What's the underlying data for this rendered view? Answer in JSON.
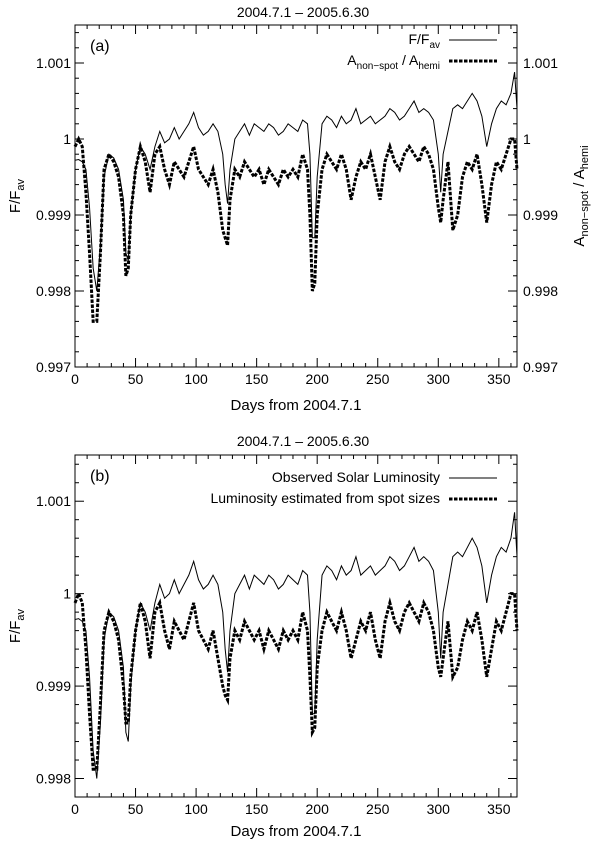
{
  "figure": {
    "panel_a": {
      "label": "(a)",
      "title": "2004.7.1 – 2005.6.30",
      "legend": {
        "solid_main": "F/F",
        "solid_sub": "av",
        "dashed_a": "A",
        "dashed_a_sub": "non−spot",
        "dashed_mid": " / A",
        "dashed_b_sub": "hemi"
      },
      "ylabel_left": {
        "main": "F/F",
        "sub": "av"
      },
      "ylabel_right": {
        "a": "A",
        "a_sub": "non−spot",
        "mid": " / A",
        "b_sub": "hemi"
      }
    },
    "panel_b": {
      "label": "(b)",
      "title": "2004.7.1 – 2005.6.30",
      "legend": {
        "solid": "Observed Solar Luminosity",
        "dashed": "Luminosity estimated from spot sizes"
      },
      "ylabel_left": {
        "main": "F/F",
        "sub": "av"
      }
    },
    "xlabel": "Days from 2004.7.1"
  },
  "chart_data": [
    {
      "type": "line",
      "panel": "a",
      "title": "2004.7.1 – 2005.6.30",
      "xlabel": "Days from 2004.7.1",
      "ylabel": "F/F_av",
      "ylabel_right": "A_non-spot / A_hemi",
      "xlim": [
        0,
        365
      ],
      "ylim": [
        0.997,
        1.0015
      ],
      "x_ticks": [
        "0",
        "50",
        "100",
        "150",
        "200",
        "250",
        "300",
        "350"
      ],
      "y_ticks": [
        "0.997",
        "0.998",
        "0.999",
        "1",
        "1.001"
      ],
      "y_tick_values": [
        0.997,
        0.998,
        0.999,
        1.0,
        1.001
      ],
      "series": [
        {
          "name": "F/F_av",
          "style": "solid",
          "x": [
            0,
            3,
            6,
            9,
            12,
            15,
            18,
            21,
            24,
            28,
            32,
            36,
            40,
            42,
            44,
            46,
            50,
            54,
            58,
            62,
            66,
            70,
            74,
            78,
            82,
            86,
            90,
            94,
            98,
            102,
            106,
            110,
            114,
            118,
            122,
            124,
            126,
            128,
            132,
            136,
            140,
            144,
            148,
            152,
            156,
            160,
            164,
            168,
            172,
            176,
            180,
            184,
            188,
            192,
            194,
            196,
            198,
            200,
            204,
            208,
            212,
            216,
            220,
            224,
            228,
            232,
            236,
            240,
            244,
            248,
            252,
            256,
            260,
            264,
            268,
            272,
            276,
            280,
            284,
            288,
            292,
            296,
            300,
            302,
            304,
            308,
            312,
            316,
            320,
            324,
            328,
            332,
            336,
            340,
            344,
            348,
            352,
            356,
            360,
            363,
            365
          ],
          "y": [
            0.99972,
            0.99973,
            0.9997,
            0.9996,
            0.9991,
            0.9983,
            0.998,
            0.9986,
            0.9995,
            0.9998,
            0.99975,
            0.9996,
            0.9992,
            0.9985,
            0.9984,
            0.999,
            0.9996,
            0.9999,
            0.9998,
            0.9996,
            0.9999,
            1.0001,
            0.99995,
            1.0,
            1.00015,
            1.0,
            1.0001,
            1.0002,
            1.00035,
            1.00015,
            1.00005,
            1.0001,
            1.0002,
            1.0001,
            0.9998,
            0.9994,
            0.99915,
            0.9996,
            1.0,
            1.0001,
            1.0002,
            1.00005,
            1.0002,
            1.00015,
            1.0001,
            1.0002,
            1.00015,
            1.00005,
            1.0001,
            1.0002,
            1.00015,
            1.0001,
            1.00025,
            1.0002,
            0.9998,
            0.9987,
            0.9987,
            0.9995,
            1.0002,
            1.0003,
            1.00025,
            1.00015,
            1.0003,
            1.0002,
            1.00025,
            1.0004,
            1.0002,
            1.00025,
            1.0003,
            1.0002,
            1.00025,
            1.0003,
            1.0004,
            1.00035,
            1.00025,
            1.0003,
            1.0004,
            1.0005,
            1.00035,
            1.0004,
            1.00035,
            1.00025,
            0.9998,
            0.9993,
            0.9998,
            1.0001,
            1.0004,
            1.00045,
            1.0004,
            1.0005,
            1.0006,
            1.0005,
            1.0003,
            0.9999,
            1.0002,
            1.0004,
            1.0005,
            1.00045,
            1.0006,
            1.00088,
            1.0004
          ]
        },
        {
          "name": "A_non-spot / A_hemi",
          "style": "dashed",
          "x": [
            0,
            3,
            6,
            9,
            12,
            15,
            18,
            21,
            24,
            28,
            32,
            36,
            40,
            42,
            44,
            46,
            50,
            54,
            58,
            62,
            66,
            70,
            74,
            78,
            82,
            86,
            90,
            94,
            98,
            102,
            106,
            110,
            114,
            118,
            122,
            124,
            126,
            128,
            132,
            136,
            140,
            144,
            148,
            152,
            156,
            160,
            164,
            168,
            172,
            176,
            180,
            184,
            188,
            192,
            194,
            196,
            198,
            200,
            204,
            208,
            212,
            216,
            220,
            224,
            228,
            232,
            236,
            240,
            244,
            248,
            252,
            256,
            260,
            264,
            268,
            272,
            276,
            280,
            284,
            288,
            292,
            296,
            300,
            302,
            304,
            308,
            312,
            316,
            320,
            324,
            328,
            332,
            336,
            340,
            344,
            348,
            352,
            356,
            360,
            363,
            365
          ],
          "y": [
            0.9999,
            1.0,
            0.9999,
            0.9993,
            0.9985,
            0.9976,
            0.9976,
            0.9985,
            0.9996,
            0.9998,
            0.9997,
            0.9995,
            0.999,
            0.9982,
            0.9983,
            0.999,
            0.9996,
            0.9999,
            0.9997,
            0.9993,
            0.9998,
            0.9999,
            0.9996,
            0.9994,
            0.9997,
            0.9996,
            0.9995,
            0.9997,
            0.9999,
            0.9996,
            0.9995,
            0.9994,
            0.9996,
            0.9993,
            0.9988,
            0.9987,
            0.9986,
            0.9992,
            0.9996,
            0.9995,
            0.9997,
            0.9996,
            0.9995,
            0.9996,
            0.9994,
            0.9996,
            0.9995,
            0.9994,
            0.9996,
            0.9995,
            0.9996,
            0.9995,
            0.9998,
            0.9996,
            0.999,
            0.998,
            0.9981,
            0.999,
            0.9996,
            0.9998,
            0.9997,
            0.9996,
            0.9998,
            0.9996,
            0.9992,
            0.9995,
            0.9997,
            0.9996,
            0.9998,
            0.9995,
            0.9992,
            0.9997,
            0.9999,
            0.9997,
            0.9996,
            0.9998,
            0.9999,
            0.9998,
            0.9997,
            0.9999,
            0.9998,
            0.9996,
            0.9991,
            0.9989,
            0.9992,
            0.9997,
            0.9988,
            0.999,
            0.9995,
            0.9997,
            0.9996,
            0.9998,
            0.9994,
            0.9989,
            0.9994,
            0.9997,
            0.9996,
            0.9998,
            1.0,
            1.0,
            0.9996
          ]
        }
      ]
    },
    {
      "type": "line",
      "panel": "b",
      "title": "2004.7.1 – 2005.6.30",
      "xlabel": "Days from 2004.7.1",
      "ylabel": "F/F_av",
      "xlim": [
        0,
        365
      ],
      "ylim": [
        0.9978,
        1.0015
      ],
      "x_ticks": [
        "0",
        "50",
        "100",
        "150",
        "200",
        "250",
        "300",
        "350"
      ],
      "y_ticks": [
        "0.998",
        "0.999",
        "1",
        "1.001"
      ],
      "y_tick_values": [
        0.998,
        0.999,
        1.0,
        1.001
      ],
      "series": [
        {
          "name": "Observed Solar Luminosity",
          "style": "solid",
          "x": [
            0,
            3,
            6,
            9,
            12,
            15,
            18,
            21,
            24,
            28,
            32,
            36,
            40,
            42,
            44,
            46,
            50,
            54,
            58,
            62,
            66,
            70,
            74,
            78,
            82,
            86,
            90,
            94,
            98,
            102,
            106,
            110,
            114,
            118,
            122,
            124,
            126,
            128,
            132,
            136,
            140,
            144,
            148,
            152,
            156,
            160,
            164,
            168,
            172,
            176,
            180,
            184,
            188,
            192,
            194,
            196,
            198,
            200,
            204,
            208,
            212,
            216,
            220,
            224,
            228,
            232,
            236,
            240,
            244,
            248,
            252,
            256,
            260,
            264,
            268,
            272,
            276,
            280,
            284,
            288,
            292,
            296,
            300,
            302,
            304,
            308,
            312,
            316,
            320,
            324,
            328,
            332,
            336,
            340,
            344,
            348,
            352,
            356,
            360,
            363,
            365
          ],
          "y": [
            0.99972,
            0.99973,
            0.9997,
            0.9996,
            0.9991,
            0.9983,
            0.998,
            0.9986,
            0.9995,
            0.9998,
            0.99975,
            0.9996,
            0.9992,
            0.9985,
            0.9984,
            0.999,
            0.9996,
            0.9999,
            0.9998,
            0.9996,
            0.9999,
            1.0001,
            0.99995,
            1.0,
            1.00015,
            1.0,
            1.0001,
            1.0002,
            1.00035,
            1.00015,
            1.00005,
            1.0001,
            1.0002,
            1.0001,
            0.9998,
            0.9994,
            0.99915,
            0.9996,
            1.0,
            1.0001,
            1.0002,
            1.00005,
            1.0002,
            1.00015,
            1.0001,
            1.0002,
            1.00015,
            1.00005,
            1.0001,
            1.0002,
            1.00015,
            1.0001,
            1.00025,
            1.0002,
            0.9998,
            0.9987,
            0.9987,
            0.9995,
            1.0002,
            1.0003,
            1.00025,
            1.00015,
            1.0003,
            1.0002,
            1.00025,
            1.0004,
            1.0002,
            1.00025,
            1.0003,
            1.0002,
            1.00025,
            1.0003,
            1.0004,
            1.00035,
            1.00025,
            1.0003,
            1.0004,
            1.0005,
            1.00035,
            1.0004,
            1.00035,
            1.00025,
            0.9998,
            0.9993,
            0.9998,
            1.0001,
            1.0004,
            1.00045,
            1.0004,
            1.0005,
            1.0006,
            1.0005,
            1.0003,
            0.9999,
            1.0002,
            1.0004,
            1.0005,
            1.00045,
            1.0006,
            1.00088,
            1.0004
          ]
        },
        {
          "name": "Luminosity estimated from spot sizes",
          "style": "dashed",
          "x": [
            0,
            3,
            6,
            9,
            12,
            15,
            18,
            21,
            24,
            28,
            32,
            36,
            40,
            42,
            44,
            46,
            50,
            54,
            58,
            62,
            66,
            70,
            74,
            78,
            82,
            86,
            90,
            94,
            98,
            102,
            106,
            110,
            114,
            118,
            122,
            124,
            126,
            128,
            132,
            136,
            140,
            144,
            148,
            152,
            156,
            160,
            164,
            168,
            172,
            176,
            180,
            184,
            188,
            192,
            194,
            196,
            198,
            200,
            204,
            208,
            212,
            216,
            220,
            224,
            228,
            232,
            236,
            240,
            244,
            248,
            252,
            256,
            260,
            264,
            268,
            272,
            276,
            280,
            284,
            288,
            292,
            296,
            300,
            302,
            304,
            308,
            312,
            316,
            320,
            324,
            328,
            332,
            336,
            340,
            344,
            348,
            352,
            356,
            360,
            363,
            365
          ],
          "y": [
            0.9999,
            1.0,
            0.9999,
            0.9994,
            0.9987,
            0.9981,
            0.9981,
            0.9988,
            0.9996,
            0.9998,
            0.9997,
            0.9995,
            0.999,
            0.9986,
            0.9986,
            0.9991,
            0.9996,
            0.9999,
            0.9997,
            0.9993,
            0.9998,
            0.9999,
            0.9996,
            0.9994,
            0.9997,
            0.9996,
            0.9995,
            0.9997,
            0.9999,
            0.9996,
            0.9995,
            0.9994,
            0.9996,
            0.9993,
            0.999,
            0.9989,
            0.99885,
            0.9993,
            0.9996,
            0.9995,
            0.9997,
            0.9996,
            0.9995,
            0.9996,
            0.9994,
            0.9996,
            0.9995,
            0.9994,
            0.9996,
            0.9995,
            0.9996,
            0.9995,
            0.9998,
            0.9996,
            0.9991,
            0.9985,
            0.99855,
            0.9992,
            0.9996,
            0.9998,
            0.9997,
            0.9996,
            0.9998,
            0.9996,
            0.9993,
            0.9995,
            0.9997,
            0.9996,
            0.9998,
            0.9995,
            0.9993,
            0.9997,
            0.9999,
            0.9997,
            0.9996,
            0.9998,
            0.9999,
            0.9998,
            0.9997,
            0.9999,
            0.9998,
            0.9996,
            0.9992,
            0.9991,
            0.9993,
            0.9997,
            0.9991,
            0.9992,
            0.9995,
            0.9997,
            0.9996,
            0.9998,
            0.9995,
            0.9991,
            0.9994,
            0.9997,
            0.9996,
            0.9998,
            1.0,
            1.0,
            0.9996
          ]
        }
      ]
    }
  ]
}
